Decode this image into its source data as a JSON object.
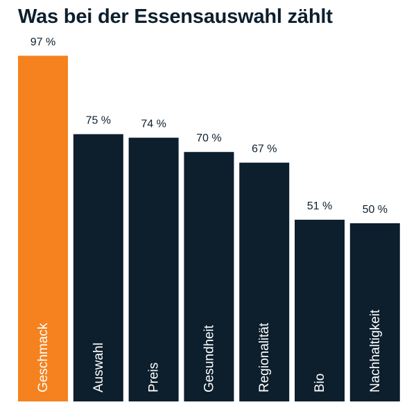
{
  "chart_data": {
    "type": "bar",
    "title": "Was bei der Essensauswahl zählt",
    "categories": [
      "Geschmack",
      "Auswahl",
      "Preis",
      "Gesundheit",
      "Regionalität",
      "Bio",
      "Nachhaltigkeit"
    ],
    "values": [
      97,
      75,
      74,
      70,
      67,
      51,
      50
    ],
    "value_labels": [
      "97 %",
      "75 %",
      "74 %",
      "70 %",
      "67 %",
      "51 %",
      "50 %"
    ],
    "ylim": [
      0,
      100
    ],
    "grid": false,
    "highlight_index": 0,
    "colors": {
      "highlight": "#f5821f",
      "bar": "#0d1f2d",
      "text": "#0d1f2d",
      "category_text": "#ffffff"
    }
  }
}
